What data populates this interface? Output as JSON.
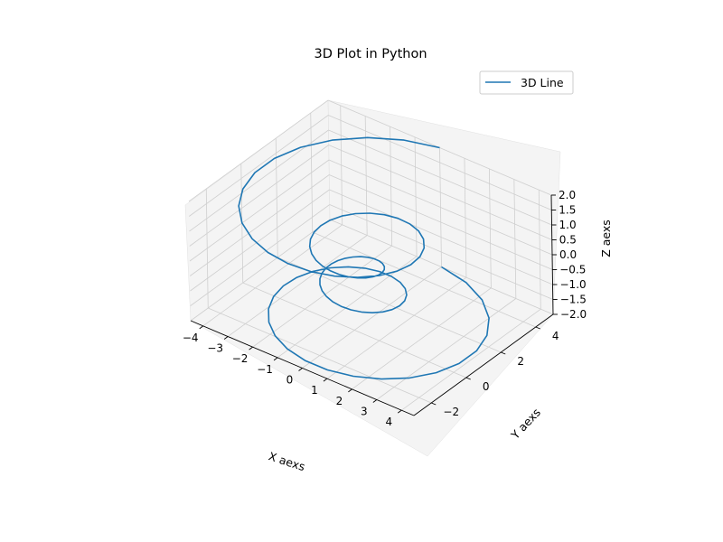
{
  "chart_data": {
    "type": "line",
    "title": "3D Plot in Python",
    "xlabel": "X aexs",
    "ylabel": "Y aexs",
    "zlabel": "Z aexs",
    "xlim": [
      -4.5,
      4.5
    ],
    "ylim": [
      -3,
      5
    ],
    "zlim": [
      -2,
      2
    ],
    "x_ticks": [
      "−4",
      "−3",
      "−2",
      "−1",
      "0",
      "1",
      "2",
      "3",
      "4"
    ],
    "y_ticks": [
      "−2",
      "0",
      "2",
      "4"
    ],
    "z_ticks": [
      "−2.0",
      "−1.5",
      "−1.0",
      "−0.5",
      "0.0",
      "0.5",
      "1.0",
      "1.5",
      "2.0"
    ],
    "grid": true,
    "legend": {
      "position": "top-right",
      "entries": [
        {
          "label": "3D Line",
          "color": "#1f77b4"
        }
      ]
    },
    "series": [
      {
        "name": "3D Line",
        "color": "#1f77b4",
        "curve": "parametric helix: z from -2 to 2, r = z^2 + 1, x = r*sin(theta), y = r*cos(theta), theta from -4pi to 4pi",
        "points": 100
      }
    ]
  }
}
